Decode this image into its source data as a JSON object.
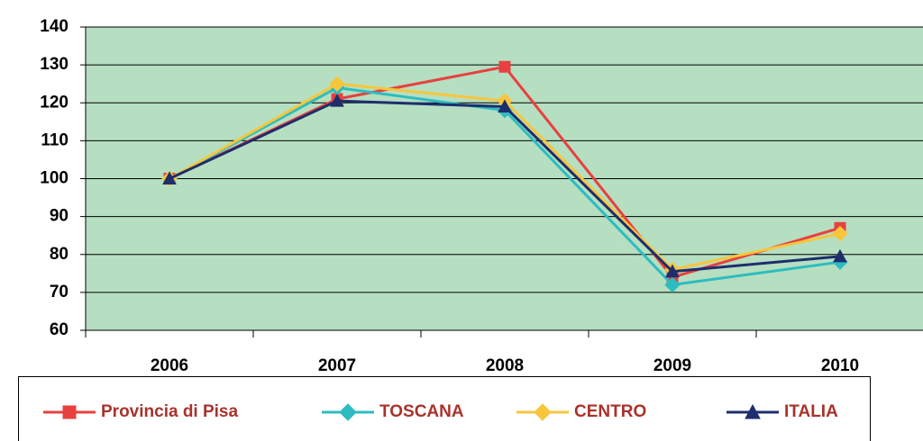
{
  "chart_data": {
    "type": "line",
    "categories": [
      "2006",
      "2007",
      "2008",
      "2009",
      "2010"
    ],
    "series": [
      {
        "name": "Provincia di Pisa",
        "color": "#e8403e",
        "marker": "square",
        "values": [
          100,
          121,
          129.5,
          74,
          87
        ]
      },
      {
        "name": "TOSCANA",
        "color": "#2dbcc0",
        "marker": "diamond",
        "values": [
          100,
          124,
          118,
          72,
          78
        ]
      },
      {
        "name": "CENTRO",
        "color": "#f8c63c",
        "marker": "diamond",
        "values": [
          100,
          125,
          120.5,
          76,
          85.5
        ]
      },
      {
        "name": "ITALIA",
        "color": "#1e2d6b",
        "marker": "triangle",
        "values": [
          100,
          120.5,
          119,
          75.5,
          79.5
        ]
      }
    ],
    "ylim": [
      60,
      140
    ],
    "yticks": [
      60,
      70,
      80,
      90,
      100,
      110,
      120,
      130,
      140
    ],
    "grid": true
  }
}
